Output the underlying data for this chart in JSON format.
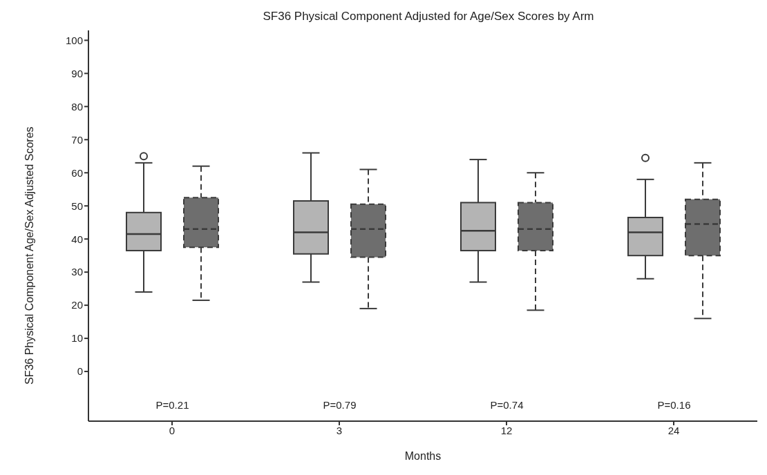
{
  "chart_data": {
    "type": "box",
    "title": "SF36 Physical Component Adjusted for Age/Sex Scores by Arm",
    "xlabel": "Months",
    "ylabel": "SF36 Physical Component Age/Sex Adjusted Scores",
    "categories": [
      "0",
      "3",
      "12",
      "24"
    ],
    "series": [
      {
        "color": "#b4b4b4",
        "line_style": "solid",
        "boxes": [
          {
            "low": 24,
            "q1": 36.5,
            "median": 41.5,
            "q3": 48,
            "high": 63,
            "outliers": [
              65
            ]
          },
          {
            "low": 27,
            "q1": 35.5,
            "median": 42,
            "q3": 51.5,
            "high": 66
          },
          {
            "low": 27,
            "q1": 36.5,
            "median": 42.5,
            "q3": 51,
            "high": 64
          },
          {
            "low": 28,
            "q1": 35,
            "median": 42,
            "q3": 46.5,
            "high": 58,
            "outliers": [
              64.5
            ]
          }
        ]
      },
      {
        "color": "#6e6e6e",
        "line_style": "dashed",
        "boxes": [
          {
            "low": 21.5,
            "q1": 37.5,
            "median": 43,
            "q3": 52.5,
            "high": 62
          },
          {
            "low": 19,
            "q1": 34.5,
            "median": 43,
            "q3": 50.5,
            "high": 61
          },
          {
            "low": 18.5,
            "q1": 36.5,
            "median": 43,
            "q3": 51,
            "high": 60
          },
          {
            "low": 16,
            "q1": 35,
            "median": 44.5,
            "q3": 52,
            "high": 63
          }
        ]
      }
    ],
    "annotations": [
      "P=0.21",
      "P=0.79",
      "P=0.74",
      "P=0.16"
    ],
    "ylim": [
      -15,
      103
    ],
    "yticks": [
      0,
      10,
      20,
      30,
      40,
      50,
      60,
      70,
      80,
      90,
      100
    ],
    "grid": false,
    "legend": false
  }
}
